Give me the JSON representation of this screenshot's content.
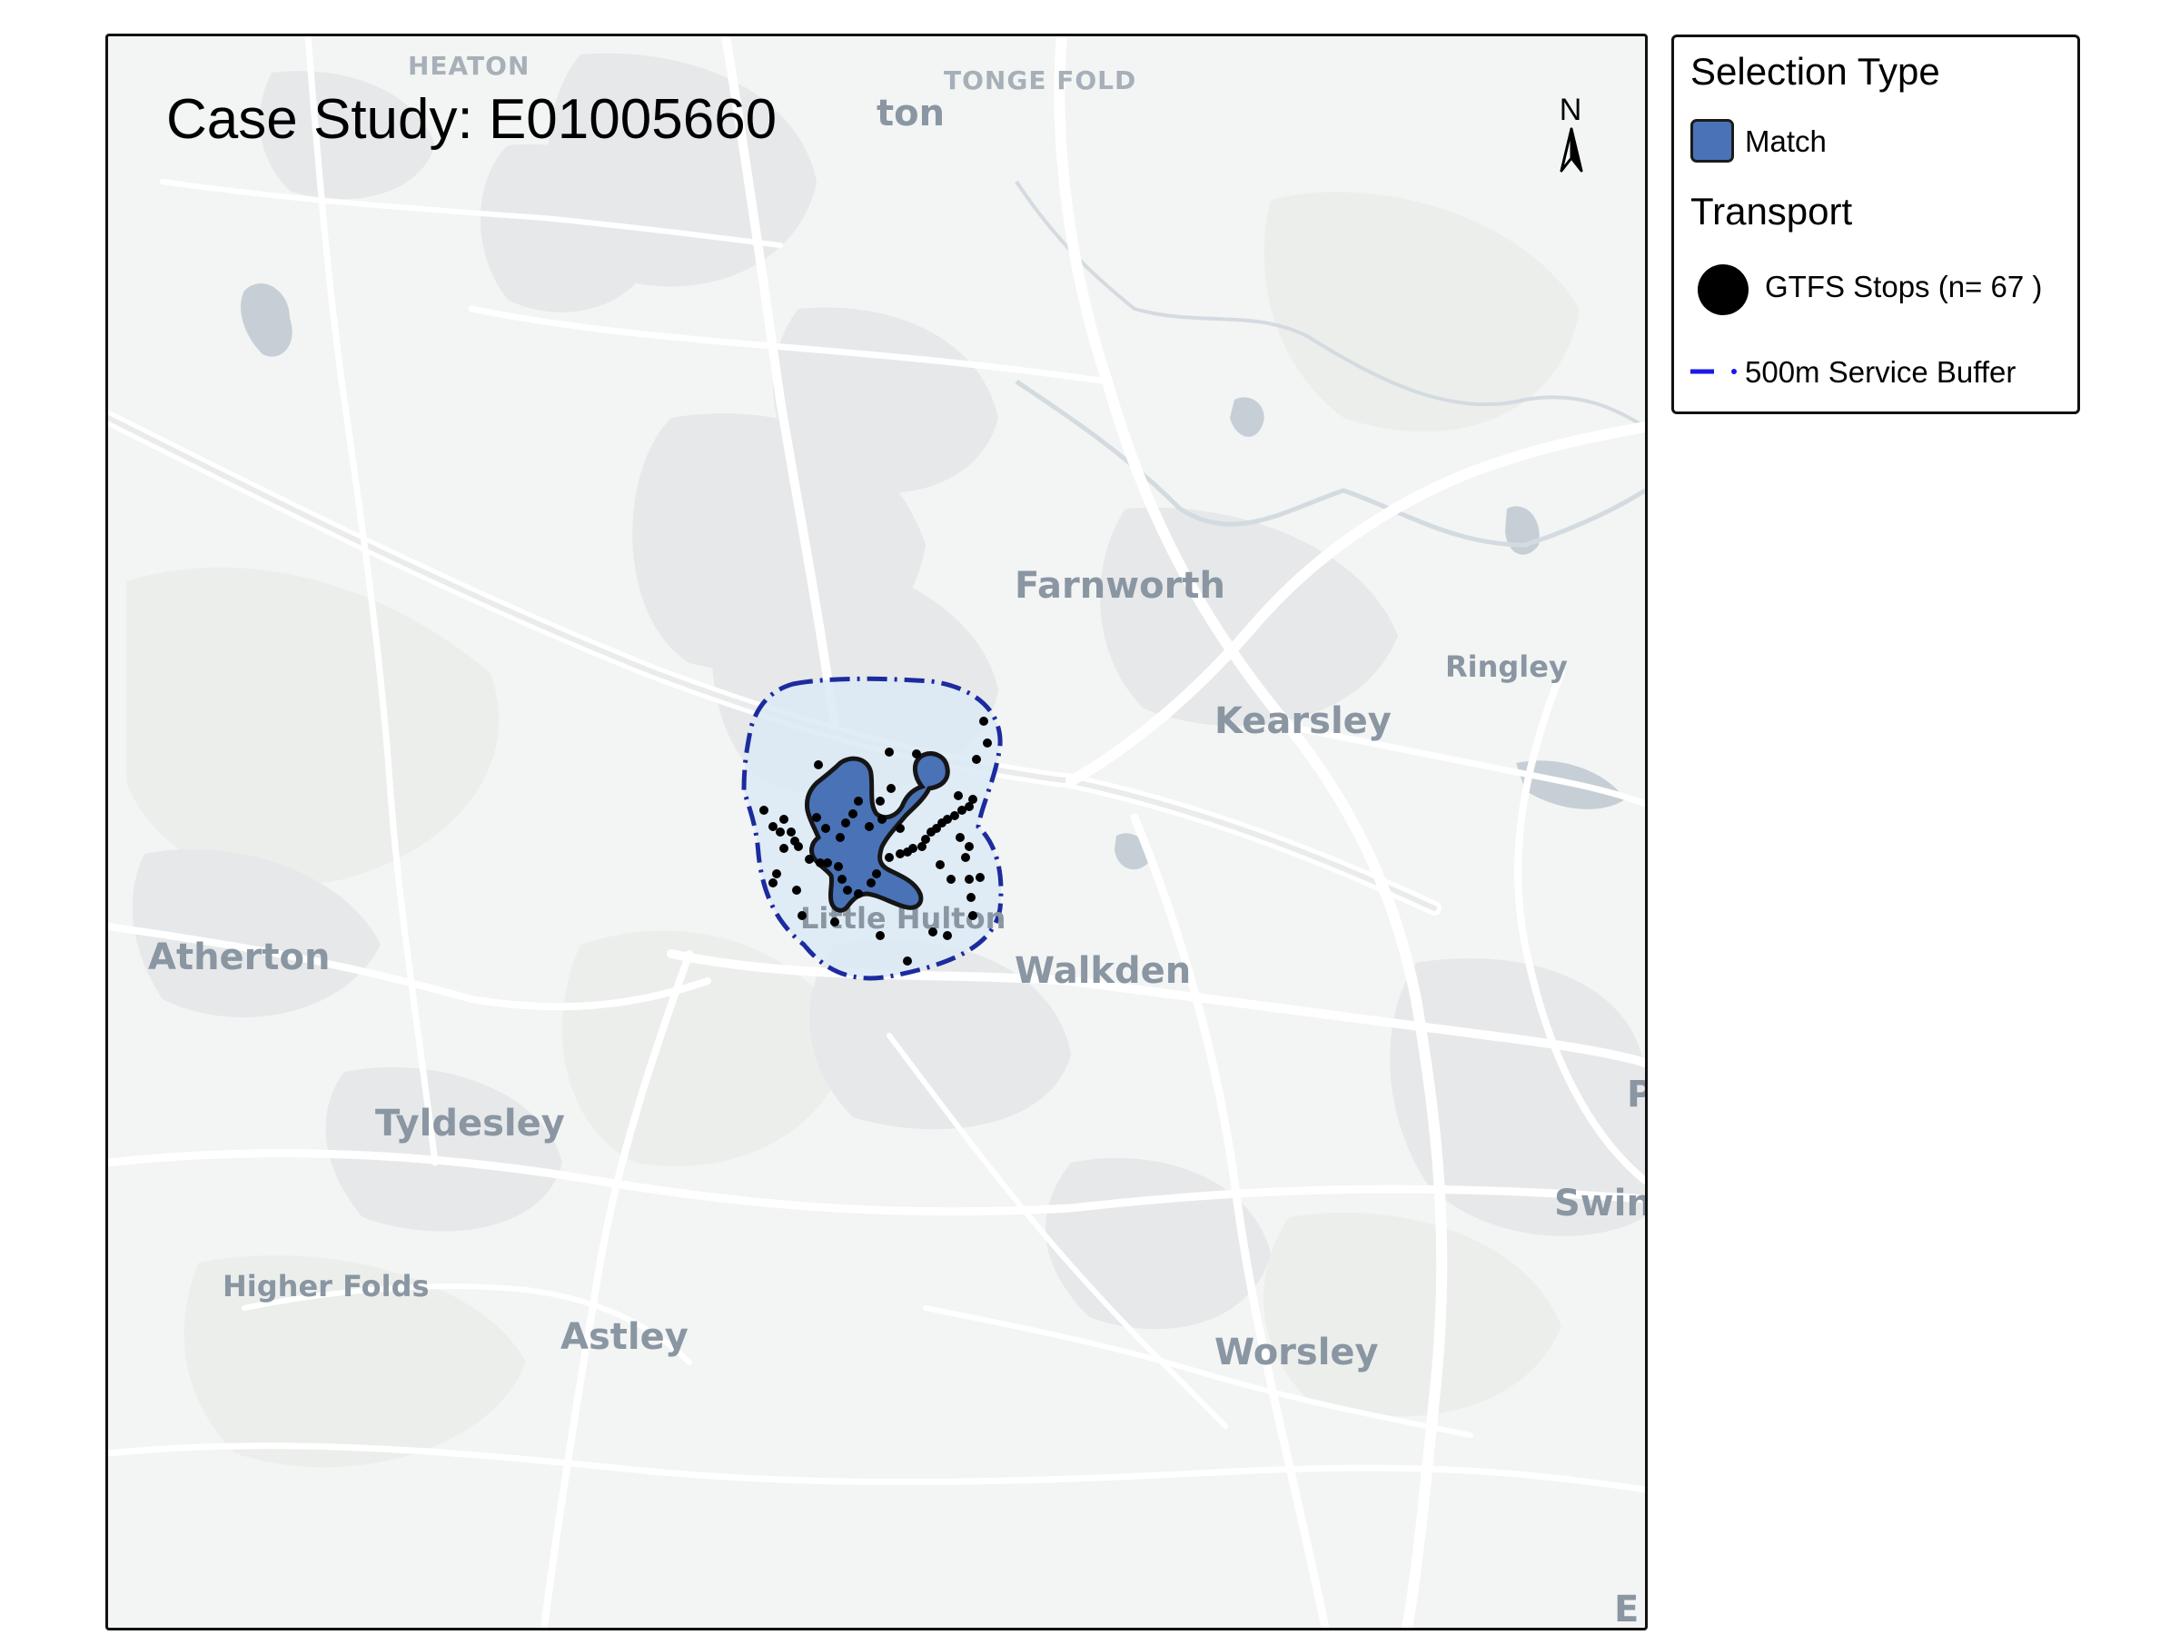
{
  "map": {
    "title": "Case Study: E01005660",
    "north_label": "N",
    "places": {
      "heaton": "HEATON",
      "tonge_fold": "TONGE FOLD",
      "bolton_fragment": "ton",
      "farnworth": "Farnworth",
      "kearsley": "Kearsley",
      "ringley": "Ringley",
      "little_hulton": "Little Hulton",
      "walkden": "Walkden",
      "atherton": "Atherton",
      "tyldesley": "Tyldesley",
      "higher_folds": "Higher Folds",
      "astley": "Astley",
      "worsley": "Worsley",
      "swinton_fragment": "Swin",
      "pendlebury_fragment": "P",
      "eccles_fragment": "E"
    },
    "colors": {
      "background": "#f3f4f4",
      "roads": "#ffffff",
      "water": "#bfc9d0",
      "match_fill": "#4a72b6",
      "buffer_fill": "#dbe9f4",
      "buffer_stroke": "#1c2b9e",
      "stops": "#000000"
    },
    "stop_count": 67
  },
  "legend": {
    "selection_heading": "Selection Type",
    "match_label": "Match",
    "transport_heading": "Transport",
    "stops_label": "GTFS Stops (n= 67 )",
    "buffer_label": "500m Service Buffer"
  }
}
